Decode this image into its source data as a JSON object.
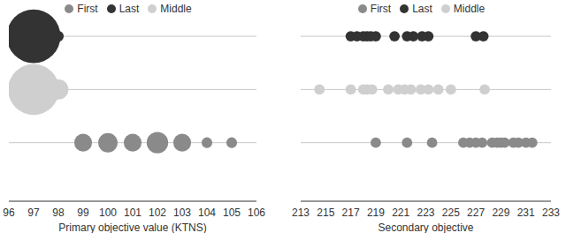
{
  "chart_data": [
    {
      "type": "bubble",
      "xlabel": "Primary objective value (KTNS)",
      "xlim": [
        96,
        106
      ],
      "xticks": [
        96,
        97,
        98,
        99,
        100,
        101,
        102,
        103,
        104,
        105,
        106
      ],
      "tick_labels": "x",
      "grid": true,
      "legend": "top",
      "size_range": [
        0,
        100
      ],
      "series": [
        {
          "name": "First",
          "color": "#8a8a8a",
          "x": [
            99,
            100,
            101,
            102,
            103,
            104,
            105
          ],
          "sizes": [
            11,
            13,
            11,
            16,
            11,
            4,
            4
          ]
        },
        {
          "name": "Middle",
          "color": "#cfcfcf",
          "x": [
            97,
            98
          ],
          "sizes": [
            90,
            14
          ]
        },
        {
          "name": "Last",
          "color": "#333333",
          "x": [
            97,
            98
          ],
          "sizes": [
            100,
            4
          ]
        }
      ]
    },
    {
      "type": "scatter",
      "xlabel": "Secondary objective",
      "xlim": [
        213,
        233
      ],
      "xticks": [
        213,
        215,
        217,
        219,
        221,
        223,
        225,
        227,
        229,
        231,
        233
      ],
      "tick_labels": "x",
      "grid": true,
      "legend": "top",
      "series": [
        {
          "name": "First",
          "color": "#8a8a8a",
          "x": [
            219,
            221.5,
            223.5,
            226,
            226.5,
            227,
            227.5,
            228.3,
            228.7,
            229,
            229.3,
            230,
            230.4,
            231,
            231.5
          ]
        },
        {
          "name": "Middle",
          "color": "#cfcfcf",
          "x": [
            214.5,
            217,
            218,
            218.3,
            218.7,
            220,
            220.8,
            221.3,
            221.8,
            222.6,
            223.2,
            224,
            225,
            227.7
          ]
        },
        {
          "name": "Last",
          "color": "#333333",
          "x": [
            217,
            217.5,
            218,
            218.3,
            218.6,
            219,
            220.5,
            221.5,
            222,
            222.7,
            223.2,
            227,
            227.6
          ]
        }
      ]
    }
  ]
}
